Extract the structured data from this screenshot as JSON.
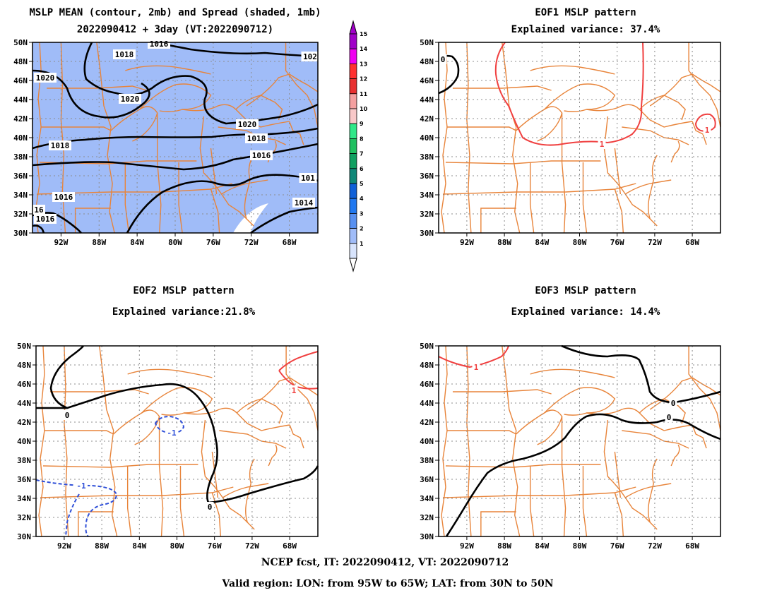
{
  "panels": [
    {
      "id": "mean",
      "title_line1": "MSLP MEAN (contour, 2mb) and Spread (shaded, 1mb)",
      "title_line2": "2022090412 + 3day (VT:2022090712)",
      "x_ticks": [
        "92W",
        "88W",
        "84W",
        "80W",
        "76W",
        "72W",
        "68W"
      ],
      "y_ticks": [
        "50N",
        "48N",
        "46N",
        "44N",
        "42N",
        "40N",
        "38N",
        "36N",
        "34N",
        "32N",
        "30N"
      ],
      "contour_labels": [
        "1016",
        "1018",
        "102",
        "1020",
        "1020",
        "1020",
        "1018",
        "1018",
        "1016",
        "1016",
        "101",
        "1014",
        "1016",
        "16"
      ]
    },
    {
      "id": "eof1",
      "title_line1": "EOF1 MSLP pattern",
      "title_line2": "Explained variance: 37.4%",
      "x_ticks": [
        "92W",
        "88W",
        "84W",
        "80W",
        "76W",
        "72W",
        "68W"
      ],
      "y_ticks": [
        "50N",
        "48N",
        "46N",
        "44N",
        "42N",
        "40N",
        "38N",
        "36N",
        "34N",
        "32N",
        "30N"
      ],
      "contour_labels": [
        "0",
        "1",
        "1"
      ]
    },
    {
      "id": "eof2",
      "title_line1": "EOF2 MSLP pattern",
      "title_line2": "Explained variance:21.8%",
      "x_ticks": [
        "92W",
        "88W",
        "84W",
        "80W",
        "76W",
        "72W",
        "68W"
      ],
      "y_ticks": [
        "50N",
        "48N",
        "46N",
        "44N",
        "42N",
        "40N",
        "38N",
        "36N",
        "34N",
        "32N",
        "30N"
      ],
      "contour_labels": [
        "0",
        "0",
        "1",
        "-1",
        "-1"
      ]
    },
    {
      "id": "eof3",
      "title_line1": "EOF3 MSLP pattern",
      "title_line2": "Explained variance: 14.4%",
      "x_ticks": [
        "92W",
        "88W",
        "84W",
        "80W",
        "76W",
        "72W",
        "68W"
      ],
      "y_ticks": [
        "50N",
        "48N",
        "46N",
        "44N",
        "42N",
        "40N",
        "38N",
        "36N",
        "34N",
        "32N",
        "30N"
      ],
      "contour_labels": [
        "0",
        "0",
        "1"
      ]
    }
  ],
  "colorbar": {
    "labels": [
      "15",
      "14",
      "13",
      "12",
      "11",
      "10",
      "9",
      "8",
      "7",
      "6",
      "5",
      "4",
      "3",
      "2",
      "1"
    ],
    "colors": [
      "#a000c8",
      "#f000f0",
      "#ff3030",
      "#e83030",
      "#f4a0a0",
      "#f8c8c8",
      "#30e888",
      "#20c060",
      "#10a060",
      "#108878",
      "#1060d8",
      "#2078f0",
      "#5890f0",
      "#a0bcf8",
      "#d8e4fc"
    ]
  },
  "colors": {
    "spread_fill": "#a0bcf8",
    "state_lines": "#e8843a",
    "grid": "#8c8c8c",
    "positive_contour": "#f04040",
    "negative_contour": "#3050d8",
    "mean_contour": "#000000"
  },
  "footer": {
    "line1": "NCEP fcst, IT: 2022090412, VT: 2022090712",
    "line2": "Valid region: LON: from 95W to 65W; LAT: from 30N to 50N"
  }
}
